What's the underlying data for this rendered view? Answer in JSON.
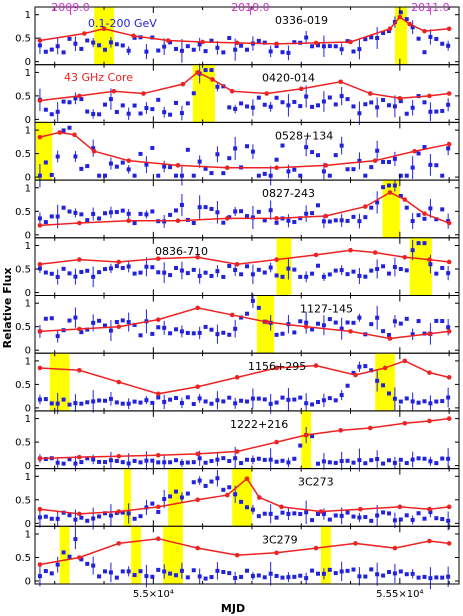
{
  "chart_data": {
    "type": "line",
    "xlabel": "MJD",
    "ylabel": "Relative Flux",
    "xlim": [
      54760,
      55620
    ],
    "x_ticks": [
      {
        "value": 55000,
        "label": "5.5×10⁴"
      },
      {
        "value": 55500,
        "label": "5.55×10⁴"
      }
    ],
    "y_ticks": [
      "0",
      "0.5",
      "1"
    ],
    "year_labels": [
      {
        "value": 54832,
        "label": "2009.0"
      },
      {
        "value": 55197,
        "label": "2010.0"
      },
      {
        "value": 55562,
        "label": "2011.0"
      }
    ],
    "legend": {
      "gamma": "0.1-200 GeV",
      "radio": "43 GHz Core"
    },
    "colors": {
      "gamma": "#2222dd",
      "radio": "#ee2222",
      "highlight": "#ffff00",
      "year": "#cc33cc"
    },
    "panels": [
      {
        "name": "0336-019",
        "radio": [
          [
            54770,
            0.45
          ],
          [
            54860,
            0.6
          ],
          [
            54900,
            0.7
          ],
          [
            54960,
            0.55
          ],
          [
            55030,
            0.45
          ],
          [
            55100,
            0.42
          ],
          [
            55170,
            0.4
          ],
          [
            55250,
            0.38
          ],
          [
            55330,
            0.4
          ],
          [
            55400,
            0.42
          ],
          [
            55480,
            0.7
          ],
          [
            55500,
            0.95
          ],
          [
            55520,
            0.8
          ],
          [
            55550,
            0.65
          ],
          [
            55600,
            0.7
          ]
        ],
        "gamma_level": 0.35,
        "gamma_spread": 0.18,
        "flare": [
          55500,
          0.85,
          20
        ],
        "highlights": [
          [
            54880,
            54920
          ],
          [
            55490,
            55515
          ]
        ]
      },
      {
        "name": "0420-014",
        "radio": [
          [
            54770,
            0.4
          ],
          [
            54850,
            0.5
          ],
          [
            54920,
            0.6
          ],
          [
            54980,
            0.55
          ],
          [
            55060,
            0.75
          ],
          [
            55090,
            1.0
          ],
          [
            55120,
            0.85
          ],
          [
            55160,
            0.6
          ],
          [
            55230,
            0.55
          ],
          [
            55300,
            0.65
          ],
          [
            55380,
            0.8
          ],
          [
            55440,
            0.55
          ],
          [
            55500,
            0.45
          ],
          [
            55560,
            0.5
          ],
          [
            55600,
            0.55
          ]
        ],
        "gamma_level": 0.3,
        "gamma_spread": 0.2,
        "flare": [
          55110,
          0.9,
          25
        ],
        "highlights": [
          [
            55080,
            55125
          ]
        ]
      },
      {
        "name": "0528+134",
        "radio": [
          [
            54770,
            0.85
          ],
          [
            54810,
            0.95
          ],
          [
            54840,
            0.9
          ],
          [
            54880,
            0.55
          ],
          [
            54950,
            0.35
          ],
          [
            55050,
            0.25
          ],
          [
            55150,
            0.2
          ],
          [
            55250,
            0.2
          ],
          [
            55350,
            0.25
          ],
          [
            55450,
            0.35
          ],
          [
            55530,
            0.55
          ],
          [
            55600,
            0.7
          ]
        ],
        "gamma_level": 0.3,
        "gamma_spread": 0.4,
        "flare": [
          54820,
          0.7,
          15
        ],
        "highlights": [
          [
            54762,
            54795
          ]
        ]
      },
      {
        "name": "0827-243",
        "radio": [
          [
            54770,
            0.2
          ],
          [
            54850,
            0.25
          ],
          [
            54950,
            0.3
          ],
          [
            55050,
            0.3
          ],
          [
            55150,
            0.35
          ],
          [
            55250,
            0.35
          ],
          [
            55350,
            0.4
          ],
          [
            55430,
            0.6
          ],
          [
            55480,
            0.9
          ],
          [
            55510,
            0.75
          ],
          [
            55550,
            0.45
          ],
          [
            55600,
            0.25
          ]
        ],
        "gamma_level": 0.45,
        "gamma_spread": 0.2,
        "flare": [
          55480,
          0.9,
          18
        ],
        "highlights": [
          [
            55465,
            55500
          ]
        ]
      },
      {
        "name": "0836-710",
        "radio": [
          [
            54770,
            0.6
          ],
          [
            54850,
            0.7
          ],
          [
            54930,
            0.65
          ],
          [
            55010,
            0.72
          ],
          [
            55090,
            0.75
          ],
          [
            55170,
            0.6
          ],
          [
            55250,
            0.7
          ],
          [
            55330,
            0.8
          ],
          [
            55400,
            0.9
          ],
          [
            55450,
            0.85
          ],
          [
            55510,
            0.75
          ],
          [
            55560,
            0.7
          ],
          [
            55600,
            0.65
          ]
        ],
        "gamma_level": 0.45,
        "gamma_spread": 0.12,
        "flare": [
          55540,
          0.95,
          15
        ],
        "highlights": [
          [
            55250,
            55280
          ],
          [
            55520,
            55565
          ]
        ]
      },
      {
        "name": "1127-145",
        "radio": [
          [
            54770,
            0.4
          ],
          [
            54850,
            0.45
          ],
          [
            54930,
            0.5
          ],
          [
            55010,
            0.65
          ],
          [
            55090,
            0.9
          ],
          [
            55160,
            0.75
          ],
          [
            55230,
            0.6
          ],
          [
            55310,
            0.5
          ],
          [
            55400,
            0.4
          ],
          [
            55480,
            0.25
          ],
          [
            55560,
            0.35
          ],
          [
            55600,
            0.4
          ]
        ],
        "gamma_level": 0.5,
        "gamma_spread": 0.2,
        "flare": [
          55200,
          0.6,
          20
        ],
        "highlights": [
          [
            55210,
            55245
          ]
        ]
      },
      {
        "name": "1156+295",
        "radio": [
          [
            54770,
            0.85
          ],
          [
            54850,
            0.8
          ],
          [
            54930,
            0.55
          ],
          [
            55010,
            0.3
          ],
          [
            55090,
            0.45
          ],
          [
            55170,
            0.65
          ],
          [
            55250,
            0.85
          ],
          [
            55330,
            0.9
          ],
          [
            55410,
            0.7
          ],
          [
            55470,
            0.85
          ],
          [
            55510,
            1.0
          ],
          [
            55560,
            0.75
          ],
          [
            55600,
            0.65
          ]
        ],
        "gamma_level": 0.15,
        "gamma_spread": 0.08,
        "flare": [
          55430,
          0.85,
          30
        ],
        "highlights": [
          [
            54790,
            54830
          ],
          [
            55450,
            55490
          ]
        ]
      },
      {
        "name": "1222+216",
        "radio": [
          [
            54770,
            0.15
          ],
          [
            54850,
            0.18
          ],
          [
            54930,
            0.2
          ],
          [
            55010,
            0.22
          ],
          [
            55090,
            0.25
          ],
          [
            55170,
            0.3
          ],
          [
            55250,
            0.5
          ],
          [
            55310,
            0.65
          ],
          [
            55380,
            0.75
          ],
          [
            55440,
            0.8
          ],
          [
            55510,
            0.9
          ],
          [
            55560,
            0.95
          ],
          [
            55600,
            1.0
          ]
        ],
        "gamma_level": 0.1,
        "gamma_spread": 0.06,
        "flare": [
          55310,
          0.8,
          12
        ],
        "highlights": [
          [
            55300,
            55320
          ]
        ]
      },
      {
        "name": "3C273",
        "radio": [
          [
            54770,
            0.3
          ],
          [
            54850,
            0.2
          ],
          [
            54930,
            0.25
          ],
          [
            55010,
            0.35
          ],
          [
            55090,
            0.5
          ],
          [
            55150,
            0.6
          ],
          [
            55190,
            0.95
          ],
          [
            55215,
            0.55
          ],
          [
            55260,
            0.35
          ],
          [
            55340,
            0.25
          ],
          [
            55420,
            0.3
          ],
          [
            55500,
            0.35
          ],
          [
            55560,
            0.3
          ],
          [
            55600,
            0.35
          ]
        ],
        "gamma_level": 0.15,
        "gamma_spread": 0.1,
        "flare": [
          55100,
          0.9,
          60
        ],
        "highlights": [
          [
            54940,
            54955
          ],
          [
            55030,
            55060
          ],
          [
            55160,
            55200
          ]
        ]
      },
      {
        "name": "3C279",
        "radio": [
          [
            54770,
            0.35
          ],
          [
            54850,
            0.5
          ],
          [
            54930,
            0.8
          ],
          [
            55010,
            0.9
          ],
          [
            55090,
            0.7
          ],
          [
            55170,
            0.55
          ],
          [
            55250,
            0.6
          ],
          [
            55330,
            0.7
          ],
          [
            55410,
            0.8
          ],
          [
            55490,
            0.7
          ],
          [
            55560,
            0.85
          ],
          [
            55600,
            0.8
          ]
        ],
        "gamma_level": 0.15,
        "gamma_spread": 0.1,
        "flare": [
          54840,
          0.7,
          20
        ],
        "highlights": [
          [
            54810,
            54830
          ],
          [
            54955,
            54975
          ],
          [
            55020,
            55060
          ],
          [
            55340,
            55360
          ]
        ]
      }
    ]
  }
}
